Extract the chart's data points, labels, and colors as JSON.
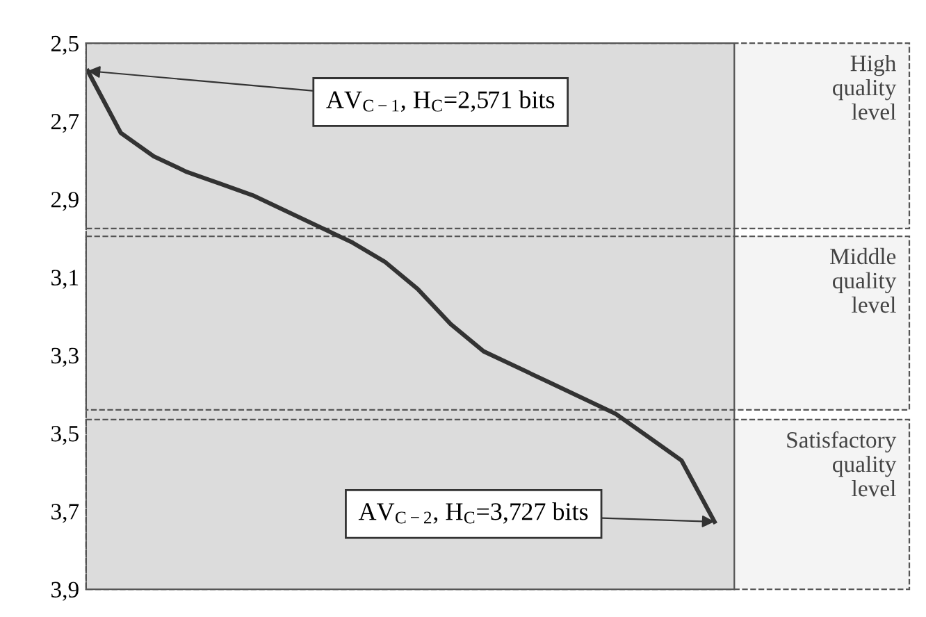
{
  "chart_data": {
    "type": "line",
    "categories": [
      null,
      null,
      null,
      null,
      null,
      null,
      null,
      null,
      null,
      null,
      null,
      null,
      null,
      null,
      null,
      null,
      null,
      null,
      null,
      null
    ],
    "series": [
      {
        "color": "#333333",
        "values": [
          2.571,
          2.73,
          2.79,
          2.83,
          2.86,
          2.89,
          2.93,
          2.97,
          3.01,
          3.06,
          3.13,
          3.22,
          3.29,
          3.33,
          3.37,
          3.41,
          3.45,
          3.51,
          3.57,
          3.727
        ]
      }
    ],
    "ylim": [
      3.9,
      2.5
    ],
    "yticks": [
      {
        "value": 2.5,
        "label": "2,5"
      },
      {
        "value": 2.7,
        "label": "2,7"
      },
      {
        "value": 2.9,
        "label": "2,9"
      },
      {
        "value": 3.1,
        "label": "3,1"
      },
      {
        "value": 3.3,
        "label": "3,3"
      },
      {
        "value": 3.5,
        "label": "3,5"
      },
      {
        "value": 3.7,
        "label": "3,7"
      },
      {
        "value": 3.9,
        "label": "3,9"
      }
    ],
    "bands": [
      {
        "axis": "y",
        "from": 2.5,
        "to": 2.975,
        "label": "High\nquality\nlevel"
      },
      {
        "axis": "y",
        "from": 2.995,
        "to": 3.44,
        "label": "Middle\nquality\nlevel"
      },
      {
        "axis": "y",
        "from": 3.465,
        "to": 3.9,
        "label": "Satisfactory\nquality\nlevel"
      }
    ],
    "annotations": [
      "AV$_{C−1}$, H$_{C}$=2,571 bits",
      "AV$_{C−2}$, H$_{C}$=3,727 bits"
    ],
    "tick_labels": "y",
    "grid": false,
    "marker": "none",
    "line_style": "solid"
  }
}
